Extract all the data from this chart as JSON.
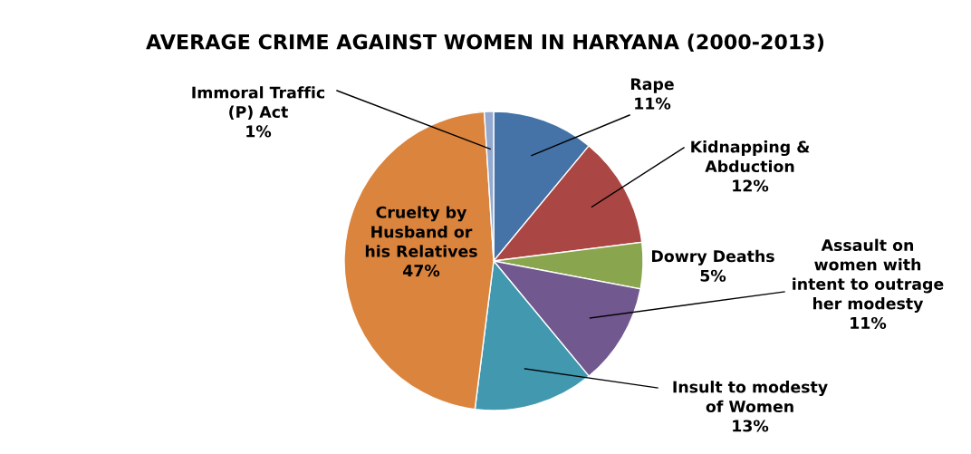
{
  "chart_data": {
    "type": "pie",
    "title": "AVERAGE CRIME AGAINST WOMEN IN HARYANA (2000-2013)",
    "categories": [
      "Rape",
      "Kidnapping &\nAbduction",
      "Dowry Deaths",
      "Assault on\nwomen with\nintent to outrage\nher modesty",
      "Insult to modesty\nof Women",
      "Cruelty by\nHusband or\nhis Relatives",
      "Immoral Traffic\n(P) Act"
    ],
    "values": [
      11,
      12,
      5,
      11,
      13,
      47,
      1
    ],
    "value_labels": [
      "11%",
      "12%",
      "5%",
      "11%",
      "13%",
      "47%",
      "1%"
    ],
    "colors": [
      "#4572a7",
      "#aa4643",
      "#89a54e",
      "#71588f",
      "#4198af",
      "#db843d",
      "#93a9cf"
    ]
  }
}
